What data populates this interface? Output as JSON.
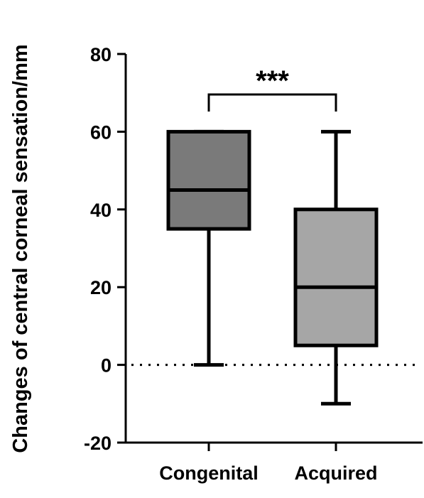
{
  "chart_data": {
    "type": "box",
    "title": "",
    "xlabel": "",
    "ylabel": "Changes of central corneal sensation/mm",
    "ylim": [
      -20,
      80
    ],
    "yticks": [
      -20,
      0,
      20,
      40,
      60,
      80
    ],
    "reference_line": 0,
    "categories": [
      "Congenital",
      "Acquired"
    ],
    "boxes": [
      {
        "name": "Congenital",
        "min": 0,
        "q1": 35,
        "median": 45,
        "q3": 60,
        "max": 60,
        "color": "#7a7a7a"
      },
      {
        "name": "Acquired",
        "min": -10,
        "q1": 5,
        "median": 20,
        "q3": 40,
        "max": 60,
        "color": "#a6a6a6"
      }
    ],
    "significance": {
      "between": [
        "Congenital",
        "Acquired"
      ],
      "label": "***"
    }
  }
}
